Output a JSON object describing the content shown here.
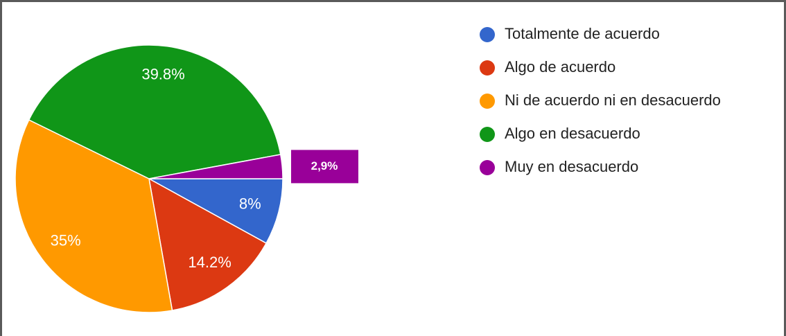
{
  "chart_data": {
    "type": "pie",
    "categories": [
      "Totalmente de acuerdo",
      "Algo de acuerdo",
      "Ni de acuerdo ni en desacuerdo",
      "Algo en desacuerdo",
      "Muy en desacuerdo"
    ],
    "values": [
      8,
      14.2,
      35,
      39.8,
      2.9
    ],
    "value_labels": [
      "8%",
      "14.2%",
      "35%",
      "39.8%",
      "2,9%"
    ],
    "colors": [
      "#3366cc",
      "#dc3912",
      "#ff9900",
      "#109618",
      "#990099"
    ]
  }
}
